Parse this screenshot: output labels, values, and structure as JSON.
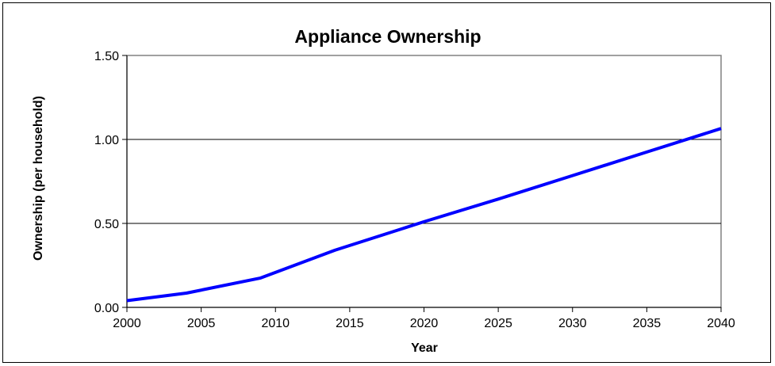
{
  "chart_data": {
    "type": "line",
    "title": "Appliance Ownership",
    "xlabel": "Year",
    "ylabel": "Ownership (per household)",
    "xlim": [
      2000,
      2040
    ],
    "ylim": [
      0,
      1.5
    ],
    "x_ticks": [
      "2000",
      "2005",
      "2010",
      "2015",
      "2020",
      "2025",
      "2030",
      "2035",
      "2040"
    ],
    "y_ticks": [
      "0.00",
      "0.50",
      "1.00",
      "1.50"
    ],
    "grid": "horizontal",
    "legend": "none",
    "series": [
      {
        "color": "#0000ff",
        "x": [
          2000,
          2004,
          2009,
          2014,
          2020,
          2025,
          2030,
          2035,
          2040
        ],
        "values": [
          0.04,
          0.085,
          0.175,
          0.34,
          0.51,
          0.645,
          0.785,
          0.925,
          1.065
        ]
      }
    ]
  }
}
